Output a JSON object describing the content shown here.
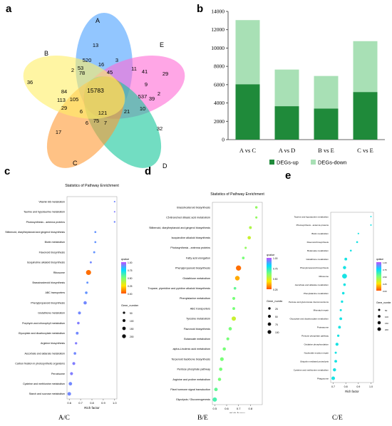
{
  "panel_labels": {
    "a": "a",
    "b": "b",
    "c": "c",
    "d": "d",
    "e": "e"
  },
  "captions": {
    "c": "A/C",
    "d": "B/E",
    "e": "C/E"
  },
  "chart_data": [
    {
      "type": "venn",
      "panel": "a",
      "sets": [
        "A",
        "B",
        "C",
        "D",
        "E"
      ],
      "set_colors": {
        "A": "#4aa0ff",
        "B": "#ffee66",
        "C": "#ff9a33",
        "D": "#14c79a",
        "E": "#ff6ad5"
      },
      "region_values": [
        "13",
        "36",
        "17",
        "32",
        "29",
        "520",
        "16",
        "3",
        "2",
        "53",
        "11",
        "41",
        "78",
        "45",
        "15783",
        "9",
        "84",
        "113",
        "105",
        "537",
        "39",
        "2",
        "29",
        "10",
        "6",
        "121",
        "21",
        "6",
        "75",
        "7"
      ]
    },
    {
      "type": "bar",
      "panel": "b",
      "categories": [
        "A vs C",
        "A vs D",
        "B vs E",
        "C vs E"
      ],
      "series": [
        {
          "name": "DEGs-up",
          "color": "#1f8a3a",
          "values": [
            6050,
            3650,
            3400,
            5200
          ]
        },
        {
          "name": "DEGs-down",
          "color": "#a8e0b5",
          "values": [
            7000,
            4000,
            3550,
            5550
          ]
        }
      ],
      "stacked": true,
      "ylim": [
        0,
        14000
      ],
      "yticks": [
        "0",
        "2000",
        "4000",
        "6000",
        "8000",
        "10000",
        "12000",
        "14000"
      ],
      "legend_position": "bottom"
    },
    {
      "type": "scatter",
      "panel": "c",
      "title": "Statistics of Pathway Enrichment",
      "xlabel": "Rich factor",
      "xlim": [
        0.58,
        1.02
      ],
      "xticks": [
        "0.6",
        "0.7",
        "0.8",
        "0.9",
        "1.0"
      ],
      "pathways": [
        "Vitamin B6 metabolism",
        "Taurine and hypotaurine metabolism",
        "Photosynthesis - antenna proteins",
        "Stilbenoid, diarylheptanoid and gingerol biosynthesis",
        "Biotin metabolism",
        "Flavonoid biosynthesis",
        "Isoquinoline alkaloid biosynthesis",
        "Ribosome",
        "Brassinosteroid biosynthesis",
        "ABC transporters",
        "Phenylpropanoid biosynthesis",
        "Glutathione metabolism",
        "Porphyrin and chlorophyll metabolism",
        "Glyoxylate and dicarboxylate metabolism",
        "Arginine biosynthesis",
        "Ascorbate and aldarate metabolism",
        "Carbon fixation in photosynthetic organisms",
        "Peroxisome",
        "Cysteine and methionine metabolism",
        "Starch and sucrose metabolism"
      ],
      "rich_factor": [
        1.0,
        1.0,
        1.0,
        0.83,
        0.83,
        0.82,
        0.79,
        0.77,
        0.76,
        0.75,
        0.74,
        0.69,
        0.68,
        0.67,
        0.66,
        0.65,
        0.64,
        0.62,
        0.61,
        0.6
      ],
      "qvalue": [
        0.9,
        0.92,
        0.9,
        0.88,
        0.88,
        0.88,
        0.9,
        0.05,
        0.88,
        0.88,
        0.9,
        0.9,
        0.92,
        0.9,
        0.92,
        0.9,
        0.92,
        0.92,
        0.9,
        0.9
      ],
      "gene_number": [
        3,
        3,
        5,
        8,
        8,
        10,
        10,
        120,
        10,
        20,
        40,
        30,
        20,
        25,
        15,
        20,
        30,
        30,
        45,
        50
      ],
      "legend_title_color": "qvalue",
      "color_ticks": [
        "1.00",
        "0.75",
        "0.50",
        "0.25",
        "0.00"
      ],
      "legend_title_size": "Gene_number",
      "size_ticks": [
        "50",
        "100",
        "150",
        "200"
      ]
    },
    {
      "type": "scatter",
      "panel": "d",
      "title": "Statistics of Pathway Enrichment",
      "xlabel": "Rich factor",
      "xlim": [
        0.48,
        0.9
      ],
      "xticks": [
        "0.5",
        "0.6",
        "0.7",
        "0.8"
      ],
      "pathways": [
        "Brassinosteroid biosynthesis",
        "C5-Branched dibasic acid metabolism",
        "Stilbenoid, diarylheptanoid and gingerol biosynthesis",
        "Isoquinoline alkaloid biosynthesis",
        "Photosynthesis - antenna proteins",
        "Fatty acid elongation",
        "Phenylpropanoid biosynthesis",
        "Glutathione metabolism",
        "Tropane, piperidine and pyridine alkaloid biosynthesis",
        "Phenylalanine metabolism",
        "ABC transporters",
        "Tyrosine metabolism",
        "Flavonoid biosynthesis",
        "Butanoate metabolism",
        "alpha-Linolenic acid metabolism",
        "Terpenoid backbone biosynthesis",
        "Pentose phosphate pathway",
        "Arginine and proline metabolism",
        "Plant hormone signal transduction",
        "Glycolysis / Gluconeogenesis"
      ],
      "rich_factor": [
        0.85,
        0.85,
        0.8,
        0.79,
        0.76,
        0.74,
        0.7,
        0.69,
        0.67,
        0.66,
        0.66,
        0.66,
        0.63,
        0.61,
        0.58,
        0.56,
        0.55,
        0.54,
        0.51,
        0.5
      ],
      "qvalue": [
        0.45,
        0.45,
        0.4,
        0.35,
        0.45,
        0.5,
        0.05,
        0.15,
        0.55,
        0.5,
        0.5,
        0.35,
        0.5,
        0.5,
        0.5,
        0.5,
        0.5,
        0.5,
        0.55,
        0.6
      ],
      "gene_number": [
        8,
        5,
        12,
        22,
        5,
        10,
        75,
        55,
        10,
        15,
        12,
        45,
        22,
        15,
        20,
        30,
        22,
        20,
        25,
        45
      ],
      "legend_title_color": "qvalue",
      "color_ticks": [
        "1.00",
        "0.75",
        "0.50",
        "0.25"
      ],
      "legend_title_size": "Gene_number",
      "size_ticks": [
        "25",
        "50",
        "75",
        "100"
      ]
    },
    {
      "type": "scatter",
      "panel": "e",
      "xlabel": "Rich factor",
      "xlim": [
        0.68,
        1.02
      ],
      "xticks": [
        "0.7",
        "0.8",
        "0.9",
        "1.0"
      ],
      "pathways": [
        "Taurine and hypotaurine metabolism",
        "Photosynthesis - antenna proteins",
        "Biotin metabolism",
        "Flavonoid biosynthesis",
        "Butanoate metabolism",
        "Glutathione metabolism",
        "Phenylpropanoid biosynthesis",
        "Ribosome",
        "Ascorbate and aldarate metabolism",
        "Phenylalanine metabolism",
        "Pentose and glucuronate interconversions",
        "Mismatch repair",
        "Glyoxylate and dicarboxylate metabolism",
        "Proteasome",
        "Pentose phosphate pathway",
        "Oxidative phosphorylation",
        "Nucleotide excision repair",
        "Ubiquitin mediated proteolysis",
        "Cysteine and methionine metabolism",
        "Phagosome"
      ],
      "rich_factor": [
        1.0,
        1.0,
        0.9,
        0.89,
        0.84,
        0.8,
        0.79,
        0.79,
        0.79,
        0.78,
        0.77,
        0.76,
        0.76,
        0.75,
        0.74,
        0.73,
        0.72,
        0.72,
        0.71,
        0.7
      ],
      "qvalue": [
        0.7,
        0.7,
        0.7,
        0.7,
        0.7,
        0.7,
        0.7,
        0.7,
        0.7,
        0.7,
        0.7,
        0.7,
        0.7,
        0.7,
        0.7,
        0.7,
        0.7,
        0.7,
        0.7,
        0.7
      ],
      "gene_number": [
        3,
        5,
        5,
        10,
        10,
        30,
        45,
        120,
        25,
        25,
        20,
        15,
        30,
        30,
        20,
        40,
        15,
        30,
        45,
        60
      ],
      "legend_title_color": "qvalue",
      "color_ticks": [
        "1.00",
        "0.75",
        "0.50",
        "0.25",
        "0.00"
      ],
      "legend_title_size": "Gene_number",
      "size_ticks": [
        "50",
        "100",
        "150",
        "200"
      ]
    }
  ]
}
